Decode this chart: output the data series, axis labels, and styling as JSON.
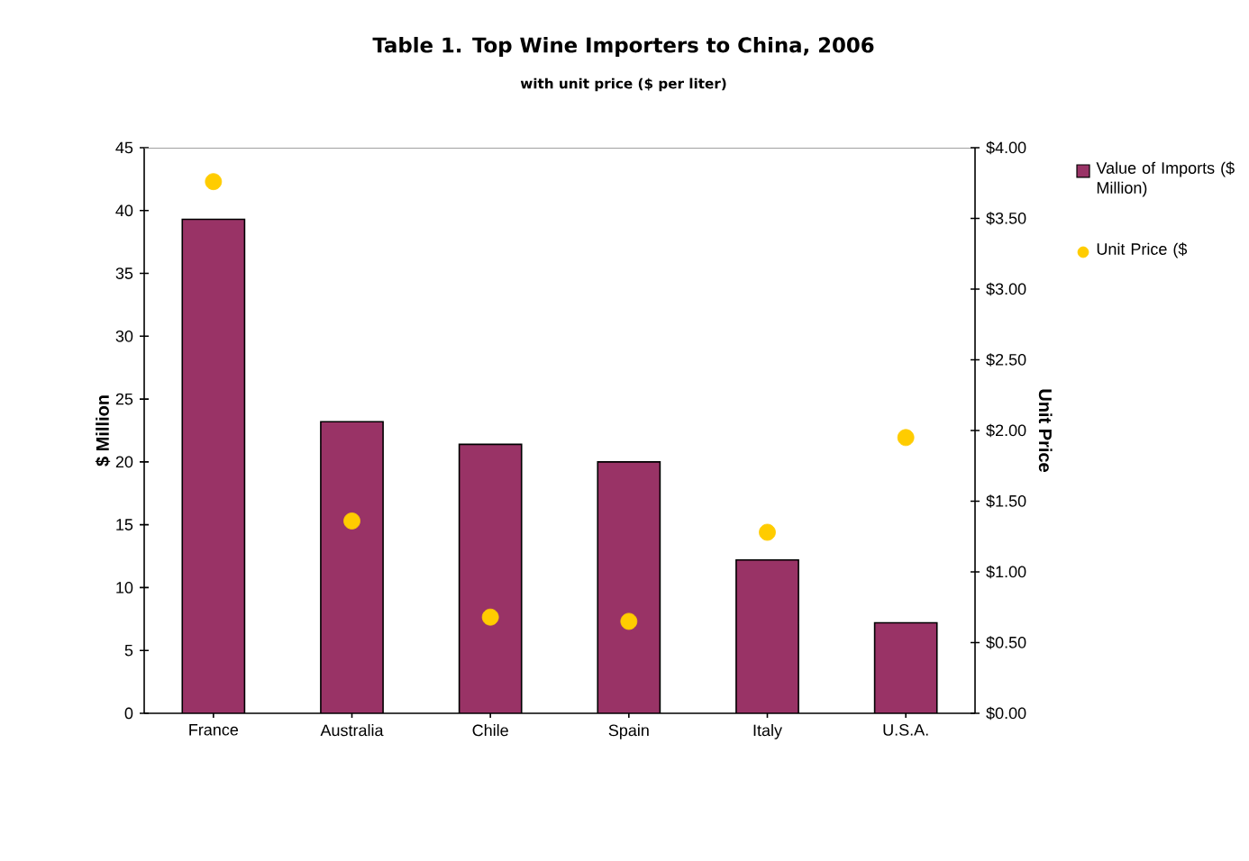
{
  "chart_data": {
    "type": "bar",
    "title": "Table 1. Top Wine Importers to China, 2006",
    "subtitle": "with unit price ($ per liter)",
    "categories": [
      "France",
      "Australia",
      "Chile",
      "Spain",
      "Italy",
      "U.S.A."
    ],
    "ylabel": "$ Million",
    "y2label": "Unit Price",
    "ylim": [
      0,
      45
    ],
    "yticks": [
      0,
      5,
      10,
      15,
      20,
      25,
      30,
      35,
      40,
      45
    ],
    "y2lim": [
      0,
      4
    ],
    "y2ticks": [
      {
        "value": 0,
        "label": "$0.00"
      },
      {
        "value": 0.5,
        "label": "$0.50"
      },
      {
        "value": 1,
        "label": "$1.00"
      },
      {
        "value": 1.5,
        "label": "$1.50"
      },
      {
        "value": 2,
        "label": "$2.00"
      },
      {
        "value": 2.5,
        "label": "$2.50"
      },
      {
        "value": 3,
        "label": "$3.00"
      },
      {
        "value": 3.5,
        "label": "$3.50"
      },
      {
        "value": 4,
        "label": "$4.00"
      }
    ],
    "legend": "right",
    "series": [
      {
        "name": "Value of Imports ($ Million)",
        "color": "#993366",
        "values": [
          39.3,
          23.2,
          21.4,
          20.0,
          12.2,
          7.2
        ]
      },
      {
        "name": "Unit Price ($",
        "type": "scatter",
        "axis": "y2",
        "marker": "circle",
        "color": "#ffcc00",
        "values": [
          3.76,
          1.36,
          0.68,
          0.65,
          1.28,
          1.95
        ]
      }
    ]
  }
}
